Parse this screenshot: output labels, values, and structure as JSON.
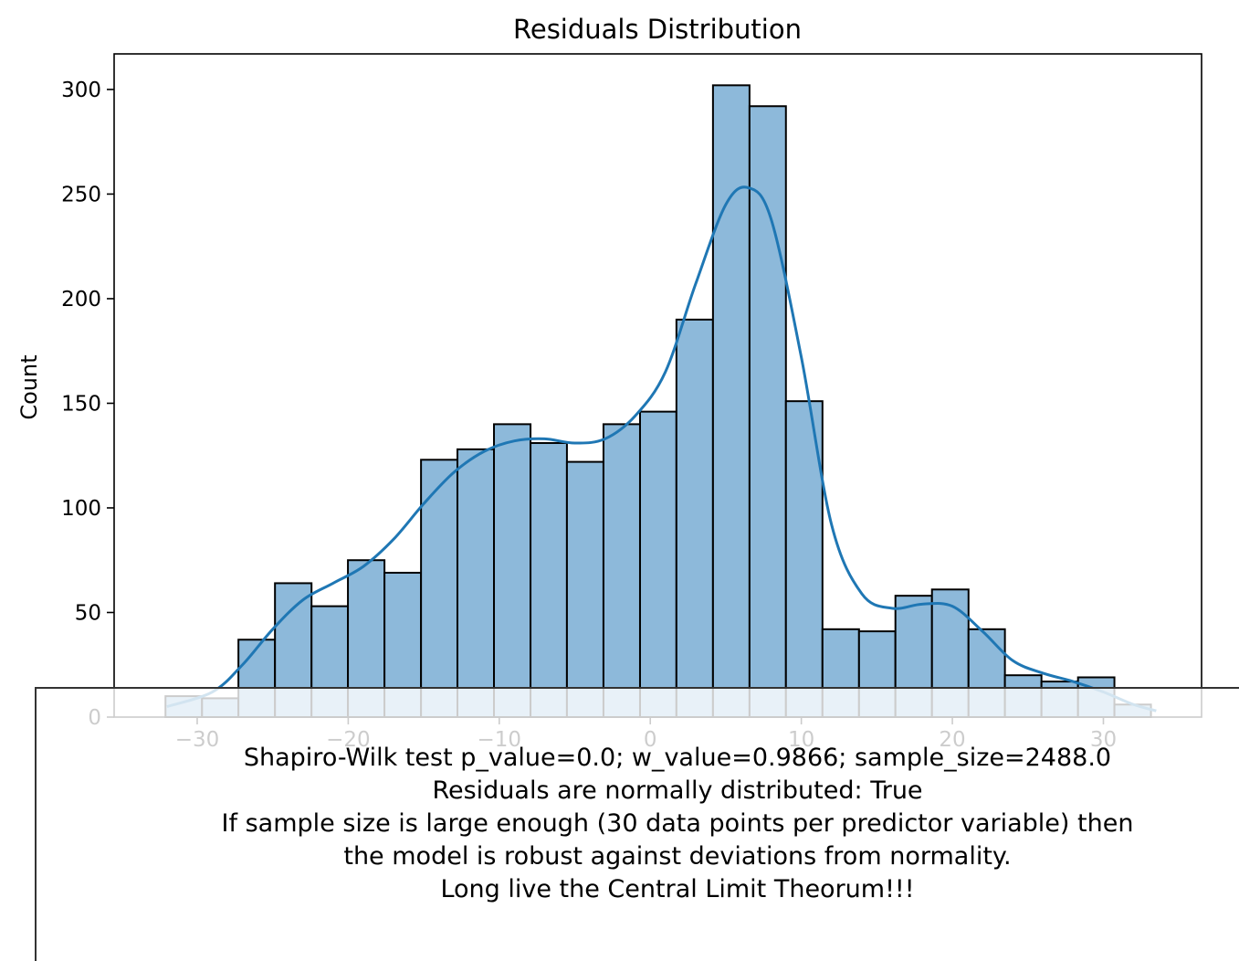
{
  "chart_data": {
    "type": "bar",
    "title": "Residuals Distribution",
    "xlabel": "",
    "ylabel": "Count",
    "xlim": [
      -35.5,
      36.5
    ],
    "ylim": [
      0,
      317
    ],
    "xticks": [
      -30,
      -20,
      -10,
      0,
      10,
      20,
      30
    ],
    "xtick_labels": [
      "−30",
      "−20",
      "−10",
      "0",
      "10",
      "20",
      "30"
    ],
    "yticks": [
      0,
      50,
      100,
      150,
      200,
      250,
      300
    ],
    "ytick_labels": [
      "0",
      "50",
      "100",
      "150",
      "200",
      "250",
      "300"
    ],
    "bin_edges": [
      -32.1,
      -29.68,
      -27.27,
      -24.85,
      -22.43,
      -20.02,
      -17.6,
      -15.18,
      -12.77,
      -10.35,
      -7.93,
      -5.52,
      -3.1,
      -0.68,
      1.73,
      4.15,
      6.57,
      8.98,
      11.4,
      13.82,
      16.23,
      18.65,
      21.07,
      23.48,
      25.9,
      28.32,
      30.73,
      33.15
    ],
    "counts": [
      10,
      9,
      37,
      64,
      53,
      75,
      69,
      123,
      128,
      140,
      131,
      122,
      140,
      146,
      190,
      302,
      292,
      151,
      42,
      41,
      58,
      61,
      42,
      20,
      17,
      19,
      6
    ],
    "kde": {
      "x": [
        -32,
        -29,
        -27,
        -25,
        -23,
        -21,
        -19,
        -17,
        -15,
        -13,
        -11,
        -9,
        -7,
        -5,
        -3,
        -1,
        1,
        3,
        5,
        6.5,
        8,
        10,
        12,
        14,
        16,
        18,
        20,
        22,
        24,
        26,
        28,
        30,
        32,
        33.5
      ],
      "y": [
        5,
        12,
        25,
        42,
        56,
        64,
        72,
        85,
        102,
        117,
        127,
        132,
        133,
        131,
        133,
        144,
        165,
        207,
        245,
        253,
        238,
        172,
        92,
        59,
        52,
        54,
        53,
        41,
        27,
        21,
        17,
        12,
        6,
        3
      ]
    },
    "colors": {
      "bar_fill": "#8db9da",
      "bar_edge": "#000000",
      "kde_line": "#1f77b4"
    },
    "grid": false,
    "legend": "none"
  },
  "note": {
    "lines": [
      "Shapiro-Wilk test p_value=0.0; w_value=0.9866; sample_size=2488.0",
      "Residuals are normally distributed: True",
      "If sample size is large enough (30 data points per predictor variable) then",
      "the model is robust against deviations from normality.",
      "Long live the Central Limit Theorum!!!"
    ]
  }
}
